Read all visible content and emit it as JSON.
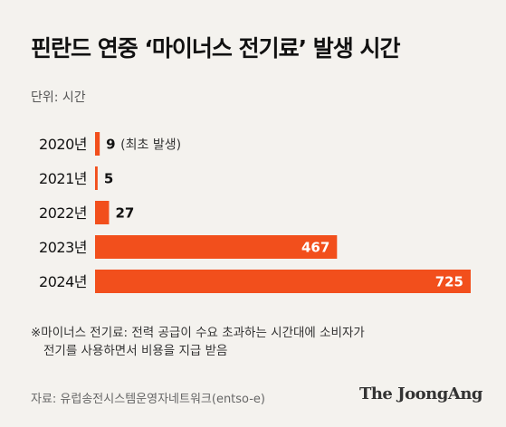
{
  "title": "핀란드 연중 ‘마이너스 전기료’ 발생 시간",
  "unit": "단위: 시간",
  "chart_data": {
    "type": "bar",
    "orientation": "horizontal",
    "categories": [
      "2020년",
      "2021년",
      "2022년",
      "2023년",
      "2024년"
    ],
    "values": [
      9,
      5,
      27,
      467,
      725
    ],
    "data_labels": [
      "9",
      "5",
      "27",
      "467",
      "725"
    ],
    "annotations": [
      {
        "category": "2020년",
        "text": "(최초 발생)"
      }
    ],
    "xlim": [
      0,
      725
    ],
    "grid": false,
    "bar_color": "#f24f1c"
  },
  "footnote": {
    "line1": "※마이너스 전기료: 전력 공급이 수요 초과하는 시간대에 소비자가",
    "line2": "전기를 사용하면서 비용을 지급 받음"
  },
  "source": "자료: 유럽송전시스템운영자네트워크(entso-e)",
  "brand": "The JoongAng"
}
